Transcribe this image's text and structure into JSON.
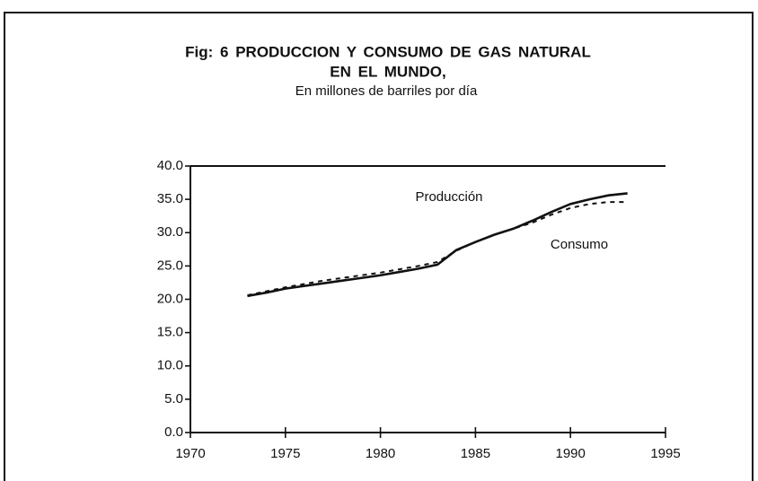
{
  "chart_data": {
    "type": "line",
    "title": [
      "Fig: 6 PRODUCCION Y CONSUMO DE GAS NATURAL",
      "EN EL MUNDO,"
    ],
    "subtitle": "En millones de barriles por día",
    "x": [
      1973,
      1974,
      1975,
      1976,
      1977,
      1978,
      1979,
      1980,
      1981,
      1982,
      1983,
      1984,
      1985,
      1986,
      1987,
      1988,
      1989,
      1990,
      1991,
      1992,
      1993
    ],
    "series": [
      {
        "name": "Producción",
        "color": "#111111",
        "style": "solid",
        "values": [
          20.5,
          21.0,
          21.6,
          22.0,
          22.4,
          22.8,
          23.2,
          23.6,
          24.1,
          24.6,
          25.2,
          27.4,
          28.6,
          29.7,
          30.6,
          31.8,
          33.1,
          34.3,
          35.0,
          35.6,
          35.9
        ]
      },
      {
        "name": "Consumo",
        "color": "#111111",
        "style": "dashed",
        "values": [
          20.6,
          21.2,
          21.8,
          22.3,
          22.8,
          23.2,
          23.6,
          24.0,
          24.5,
          25.0,
          25.6,
          27.3,
          28.6,
          29.7,
          30.6,
          31.5,
          32.7,
          33.7,
          34.3,
          34.6,
          34.6
        ]
      }
    ],
    "xlim": [
      1970,
      1995
    ],
    "xticks": [
      1970,
      1975,
      1980,
      1985,
      1990,
      1995
    ],
    "ylim": [
      0,
      40
    ],
    "yticks": [
      {
        "value": 0,
        "label": "0.0"
      },
      {
        "value": 5,
        "label": "5.0"
      },
      {
        "value": 10,
        "label": "10.0"
      },
      {
        "value": 15,
        "label": "15.0"
      },
      {
        "value": 20,
        "label": "20.0"
      },
      {
        "value": 25,
        "label": "25.0"
      },
      {
        "value": 30,
        "label": "30.0"
      },
      {
        "value": 35,
        "label": "35.0"
      },
      {
        "value": 40,
        "label": "40.0"
      }
    ],
    "grid": false
  }
}
